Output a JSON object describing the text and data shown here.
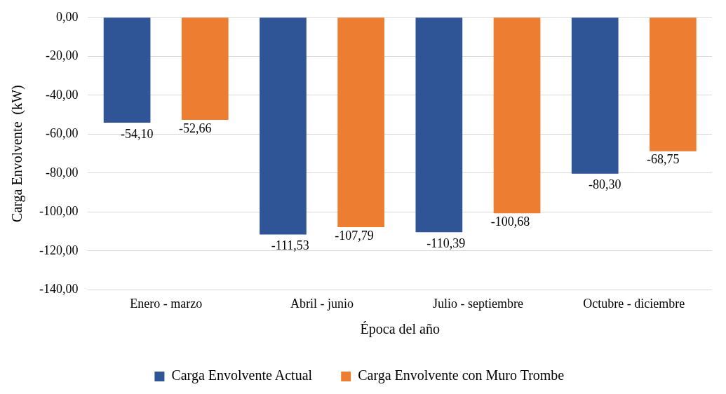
{
  "chart_data": {
    "type": "bar",
    "ylabel": "Carga Envolvente  (kW)",
    "xlabel": "Época del año",
    "categories": [
      "Enero - marzo",
      "Abril - junio",
      "Julio - septiembre",
      "Octubre - diciembre"
    ],
    "series": [
      {
        "name": "Carga Envolvente Actual",
        "color": "#2f5597",
        "values": [
          -54.1,
          -111.53,
          -110.39,
          -80.3
        ],
        "value_labels": [
          "-54,10",
          "-111,53",
          "-110,39",
          "-80,30"
        ]
      },
      {
        "name": "Carga Envolvente con Muro Trombe",
        "color": "#ed7d31",
        "values": [
          -52.66,
          -107.79,
          -100.68,
          -68.75
        ],
        "value_labels": [
          "-52,66",
          "-107,79",
          "-100,68",
          "-68,75"
        ]
      }
    ],
    "ylim": [
      -140,
      0
    ],
    "yticks": [
      {
        "value": 0,
        "label": "0,00"
      },
      {
        "value": -20,
        "label": "-20,00"
      },
      {
        "value": -40,
        "label": "-40,00"
      },
      {
        "value": -60,
        "label": "-60,00"
      },
      {
        "value": -80,
        "label": "-80,00"
      },
      {
        "value": -100,
        "label": "-100,00"
      },
      {
        "value": -120,
        "label": "-120,00"
      },
      {
        "value": -140,
        "label": "-140,00"
      }
    ],
    "grid": "y",
    "legend": "bottom"
  }
}
